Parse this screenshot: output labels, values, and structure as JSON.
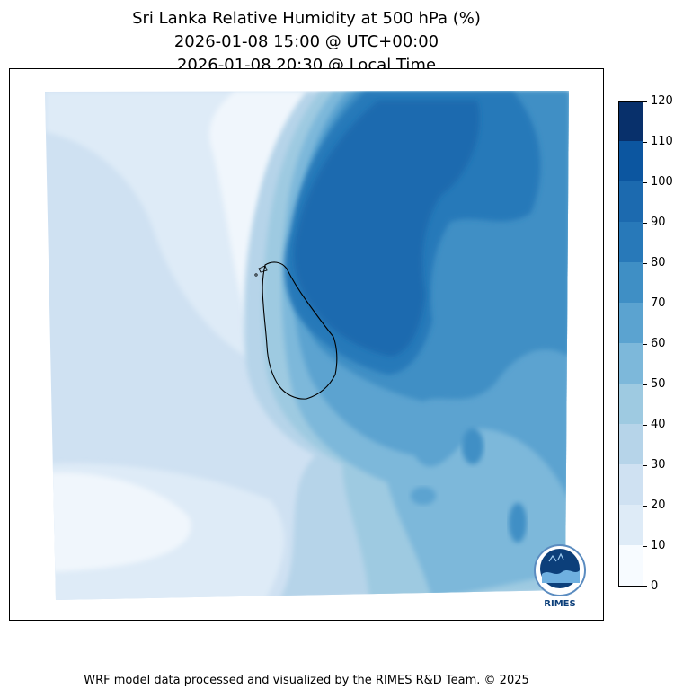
{
  "title": {
    "line1": "Sri Lanka Relative Humidity at 500 hPa (%)",
    "line2": "2026-01-08 15:00 @ UTC+00:00",
    "line3": "2026-01-08 20:30 @ Local Time"
  },
  "colorbar": {
    "levels": [
      0,
      10,
      20,
      30,
      40,
      50,
      60,
      70,
      80,
      90,
      100,
      110,
      120
    ],
    "labels": [
      "0",
      "10",
      "20",
      "30",
      "40",
      "50",
      "60",
      "70",
      "80",
      "90",
      "100",
      "110",
      "120"
    ],
    "colors": [
      "#f7fbff",
      "#deebf7",
      "#cfe1f2",
      "#b6d4e9",
      "#9ecae1",
      "#7db8da",
      "#5ba3d0",
      "#3f8fc5",
      "#2879b9",
      "#1c6aaf",
      "#0c56a0",
      "#08306b"
    ]
  },
  "logo": {
    "text": "RIMES"
  },
  "footer": "WRF model data processed and visualized by the RIMES R&D Team. © 2025"
}
